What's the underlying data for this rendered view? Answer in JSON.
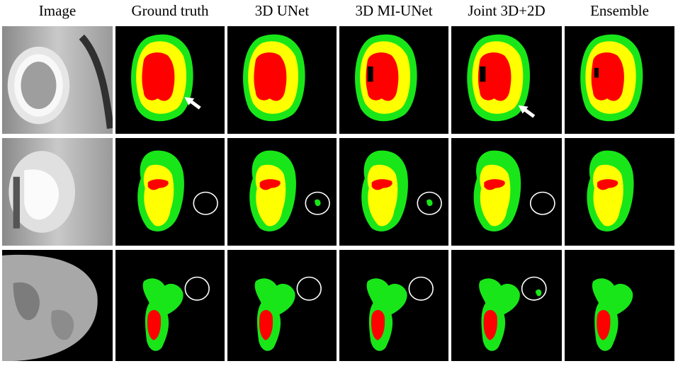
{
  "columns": [
    {
      "id": "image",
      "title": "Image"
    },
    {
      "id": "gt",
      "title": "Ground truth"
    },
    {
      "id": "unet3d",
      "title": "3D UNet"
    },
    {
      "id": "miunet",
      "title": "3D MI-UNet"
    },
    {
      "id": "joint",
      "title": "Joint 3D+2D"
    },
    {
      "id": "ensemble",
      "title": "Ensemble"
    }
  ],
  "rows": 3,
  "colors": {
    "edema": "#19e619",
    "enhancing": "#ffff00",
    "necrosis": "#ff0000",
    "background": "#000000",
    "annotation": "#ffffff"
  },
  "annotations": {
    "arrows": [
      {
        "row": 1,
        "column": "gt"
      },
      {
        "row": 1,
        "column": "joint"
      }
    ],
    "circles": [
      {
        "row": 2,
        "column": "gt"
      },
      {
        "row": 2,
        "column": "unet3d"
      },
      {
        "row": 2,
        "column": "miunet"
      },
      {
        "row": 2,
        "column": "joint"
      },
      {
        "row": 3,
        "column": "gt"
      },
      {
        "row": 3,
        "column": "unet3d"
      },
      {
        "row": 3,
        "column": "miunet"
      },
      {
        "row": 3,
        "column": "joint"
      }
    ]
  }
}
